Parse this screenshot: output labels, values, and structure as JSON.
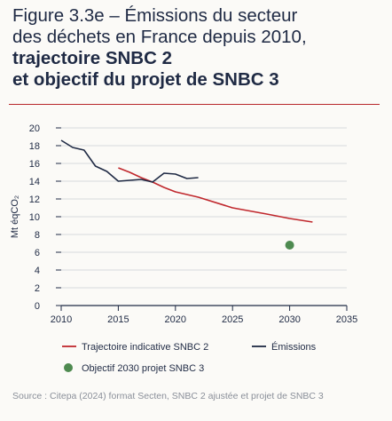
{
  "figure": {
    "title_line1": "Figure 3.3e – Émissions du secteur",
    "title_line2": "des déchets en France depuis 2010,",
    "title_line3": "trajectoire SNBC 2",
    "title_line4": "et objectif du projet de SNBC 3",
    "source": "Source : Citepa (2024) format Secten, SNBC 2 ajustée et projet de SNBC 3"
  },
  "colors": {
    "trajectoire": "#c0282d",
    "emissions": "#1f2a44",
    "objectif": "#4e8a50",
    "grid": "#d7d9dd",
    "axis": "#1f2a44"
  },
  "chart_data": {
    "type": "line",
    "ylabel": "Mt éqCO₂",
    "xlim": [
      2010,
      2035
    ],
    "ylim": [
      0,
      20
    ],
    "xticks": [
      2010,
      2015,
      2020,
      2025,
      2030,
      2035
    ],
    "yticks": [
      0,
      2,
      4,
      6,
      8,
      10,
      12,
      14,
      16,
      18,
      20
    ],
    "grid": "horizontal",
    "legend_position": "bottom",
    "series": [
      {
        "name": "Trajectoire indicative SNBC 2",
        "kind": "line",
        "color": "#c0282d",
        "points": [
          [
            2015,
            15.5
          ],
          [
            2016,
            15.0
          ],
          [
            2017,
            14.4
          ],
          [
            2018,
            13.9
          ],
          [
            2019,
            13.3
          ],
          [
            2020,
            12.8
          ],
          [
            2022,
            12.2
          ],
          [
            2025,
            11.0
          ],
          [
            2028,
            10.3
          ],
          [
            2030,
            9.8
          ],
          [
            2032,
            9.4
          ]
        ]
      },
      {
        "name": "Émissions",
        "kind": "line",
        "color": "#1f2a44",
        "points": [
          [
            2010,
            18.6
          ],
          [
            2011,
            17.8
          ],
          [
            2012,
            17.5
          ],
          [
            2013,
            15.7
          ],
          [
            2014,
            15.1
          ],
          [
            2015,
            14.0
          ],
          [
            2016,
            14.1
          ],
          [
            2017,
            14.2
          ],
          [
            2018,
            13.9
          ],
          [
            2019,
            14.9
          ],
          [
            2020,
            14.8
          ],
          [
            2021,
            14.3
          ],
          [
            2022,
            14.4
          ]
        ]
      },
      {
        "name": "Objectif 2030 projet SNBC 3",
        "kind": "point",
        "color": "#4e8a50",
        "points": [
          [
            2030,
            6.8
          ]
        ]
      }
    ]
  }
}
